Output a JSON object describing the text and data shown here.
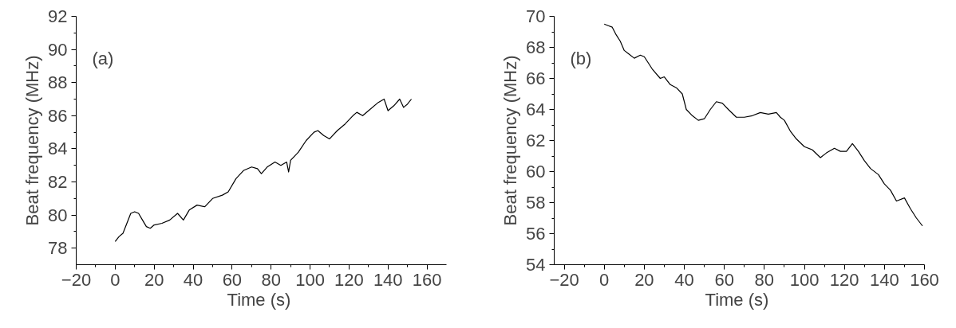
{
  "chart_data": [
    {
      "type": "line",
      "xlabel": "Time  (s)",
      "ylabel": "Beat frequency (MHz)",
      "annotations": [
        "(a)"
      ],
      "xlim": [
        -20,
        170
      ],
      "xticks": [
        -20,
        0,
        20,
        40,
        60,
        80,
        100,
        120,
        140,
        160
      ],
      "ylim": [
        77,
        92
      ],
      "yticks": [
        78,
        80,
        82,
        84,
        86,
        88,
        90,
        92
      ],
      "grid": false,
      "marker": "none",
      "line_style": "solid",
      "series": [
        {
          "color": "#000000",
          "x": [
            0,
            2,
            4,
            6,
            8,
            10,
            12,
            14,
            16,
            18,
            20,
            24,
            28,
            32,
            35,
            38,
            42,
            46,
            50,
            55,
            58,
            62,
            66,
            70,
            73,
            75,
            78,
            82,
            85,
            88,
            89,
            90,
            94,
            98,
            102,
            104,
            107,
            110,
            114,
            118,
            122,
            124,
            127,
            130,
            135,
            138,
            140,
            143,
            146,
            148,
            150,
            152
          ],
          "values": [
            78.4,
            78.7,
            78.9,
            79.5,
            80.1,
            80.2,
            80.1,
            79.7,
            79.3,
            79.2,
            79.4,
            79.5,
            79.7,
            80.1,
            79.7,
            80.3,
            80.6,
            80.5,
            81.0,
            81.2,
            81.4,
            82.2,
            82.7,
            82.9,
            82.8,
            82.5,
            82.9,
            83.2,
            83.0,
            83.2,
            82.6,
            83.3,
            83.8,
            84.5,
            85.0,
            85.1,
            84.8,
            84.6,
            85.1,
            85.5,
            86.0,
            86.2,
            86.0,
            86.3,
            86.8,
            87.0,
            86.3,
            86.6,
            87.0,
            86.5,
            86.7,
            87.0
          ]
        }
      ]
    },
    {
      "type": "line",
      "xlabel": "Time  (s)",
      "ylabel": "Beat frequency (MHz)",
      "annotations": [
        "(b)"
      ],
      "xlim": [
        -25,
        160
      ],
      "xticks": [
        -20,
        0,
        20,
        40,
        60,
        80,
        100,
        120,
        140,
        160
      ],
      "ylim": [
        54,
        70
      ],
      "yticks": [
        54,
        56,
        58,
        60,
        62,
        64,
        66,
        68,
        70
      ],
      "grid": false,
      "marker": "none",
      "line_style": "solid",
      "series": [
        {
          "color": "#000000",
          "x": [
            0,
            2,
            4,
            6,
            8,
            10,
            12,
            15,
            18,
            20,
            24,
            28,
            30,
            33,
            36,
            39,
            41,
            44,
            47,
            50,
            53,
            56,
            59,
            62,
            66,
            70,
            74,
            78,
            82,
            86,
            88,
            90,
            93,
            96,
            100,
            104,
            108,
            111,
            115,
            118,
            121,
            124,
            127,
            130,
            133,
            137,
            140,
            143,
            146,
            150,
            153,
            156,
            159
          ],
          "values": [
            69.5,
            69.4,
            69.3,
            68.8,
            68.4,
            67.8,
            67.6,
            67.3,
            67.5,
            67.4,
            66.6,
            66.0,
            66.1,
            65.6,
            65.4,
            65.0,
            64.0,
            63.6,
            63.3,
            63.4,
            64.0,
            64.5,
            64.4,
            64.0,
            63.5,
            63.5,
            63.6,
            63.8,
            63.7,
            63.8,
            63.5,
            63.3,
            62.6,
            62.1,
            61.6,
            61.4,
            60.9,
            61.2,
            61.5,
            61.3,
            61.3,
            61.8,
            61.3,
            60.7,
            60.2,
            59.8,
            59.2,
            58.8,
            58.1,
            58.3,
            57.6,
            57.0,
            56.5
          ]
        }
      ]
    }
  ]
}
